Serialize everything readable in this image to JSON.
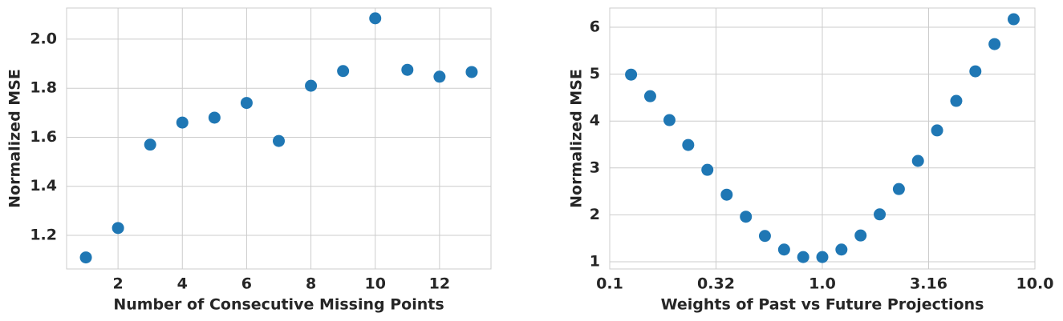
{
  "chart_data": [
    {
      "type": "scatter",
      "xlabel": "Number of Consecutive Missing Points",
      "ylabel": "Normalized MSE",
      "color": "#1f77b4",
      "grid": true,
      "xscale": "linear",
      "x": [
        1,
        2,
        3,
        4,
        5,
        6,
        7,
        8,
        9,
        10,
        11,
        12,
        13
      ],
      "values": [
        1.11,
        1.23,
        1.57,
        1.66,
        1.68,
        1.74,
        1.585,
        1.81,
        1.87,
        2.085,
        1.875,
        1.847,
        1.866
      ],
      "xlim": [
        0.4,
        13.6
      ],
      "ylim": [
        1.063,
        2.127
      ],
      "xticks": [
        2,
        4,
        6,
        8,
        10,
        12
      ],
      "yticks": [
        1.2,
        1.4,
        1.6,
        1.8,
        {
          "value": 2,
          "label": "2.0"
        }
      ]
    },
    {
      "type": "scatter",
      "xlabel": "Weights of Past vs Future Projections",
      "ylabel": "Normalized MSE",
      "color": "#1f77b4",
      "grid": true,
      "xscale": "log",
      "x": [
        0.126,
        0.155,
        0.191,
        0.234,
        0.288,
        0.355,
        0.437,
        0.537,
        0.661,
        0.813,
        1.0,
        1.23,
        1.514,
        1.862,
        2.291,
        2.818,
        3.467,
        4.266,
        5.248,
        6.457,
        7.943
      ],
      "values": [
        4.99,
        4.53,
        4.02,
        3.49,
        2.96,
        2.43,
        1.96,
        1.55,
        1.26,
        1.1,
        1.1,
        1.26,
        1.56,
        2.01,
        2.55,
        3.15,
        3.8,
        4.43,
        5.06,
        5.64,
        6.17
      ],
      "xlim": [
        0.1,
        10
      ],
      "ylim": [
        0.846,
        6.41
      ],
      "xticks": [
        {
          "value": 0.1,
          "label": "0.1"
        },
        {
          "value": 0.3162,
          "label": "0.32"
        },
        {
          "value": 1,
          "label": "1.0"
        },
        {
          "value": 3.162,
          "label": "3.16"
        },
        {
          "value": 10,
          "label": "10.0"
        }
      ],
      "yticks": [
        1,
        2,
        3,
        4,
        5,
        6
      ]
    }
  ]
}
